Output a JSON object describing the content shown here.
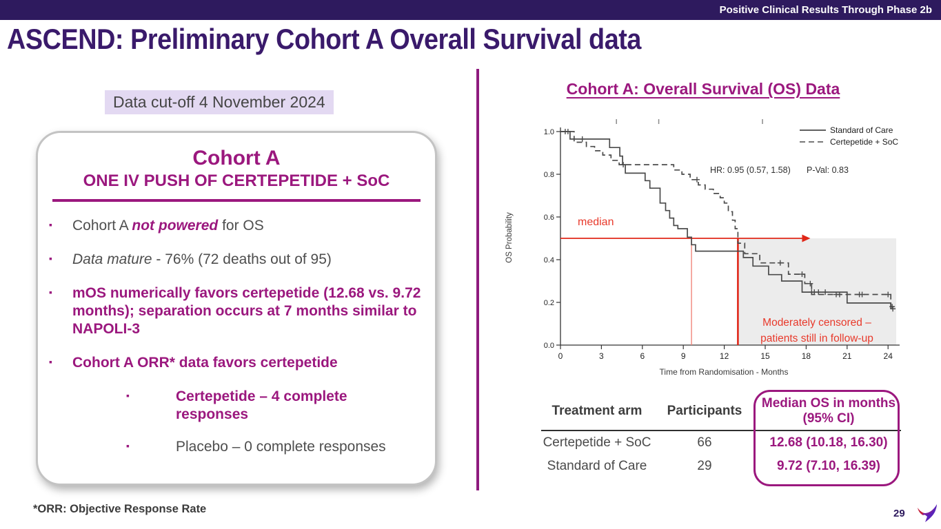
{
  "banner": {
    "text": "Positive Clinical Results Through Phase 2b"
  },
  "title": "ASCEND: Preliminary Cohort A Overall Survival data",
  "colors": {
    "banner_purple": "#2E1A5E",
    "title_purple": "#3A1A6B",
    "accent_magenta": "#9B187E",
    "divider_magenta": "#8E1A7E",
    "highlight_lavender": "#E3D9F2",
    "gray_text": "#4E4E4E",
    "red_annotation": "#E8392B",
    "curve_gray": "#4A4A4A"
  },
  "left_panel": {
    "cutoff": "Data cut-off 4 November 2024",
    "card": {
      "heading": "Cohort A",
      "subheading": "ONE IV PUSH OF CERTEPETIDE + SoC",
      "bullets": [
        {
          "level": 1,
          "segments": [
            {
              "t": "Cohort A ",
              "s": "g"
            },
            {
              "t": "not powered",
              "s": "mi"
            },
            {
              "t": " for OS",
              "s": "g"
            }
          ]
        },
        {
          "level": 1,
          "segments": [
            {
              "t": "Data mature",
              "s": "gi"
            },
            {
              "t": " - 76% (72 deaths out of 95)",
              "s": "g"
            }
          ]
        },
        {
          "level": 1,
          "segments": [
            {
              "t": "mOS numerically favors certepetide (12.68 vs. 9.72 months); separation occurs at 7 months similar to NAPOLI-3",
              "s": "m"
            }
          ]
        },
        {
          "level": 1,
          "segments": [
            {
              "t": "Cohort A ORR* data favors certepetide",
              "s": "m"
            }
          ]
        },
        {
          "level": 2,
          "segments": [
            {
              "t": "Certepetide – 4 complete responses",
              "s": "m"
            }
          ]
        },
        {
          "level": 2,
          "segments": [
            {
              "t": "Placebo – 0 complete responses",
              "s": "g"
            }
          ]
        }
      ]
    },
    "footnote": "*ORR: Objective Response Rate"
  },
  "right_panel": {
    "chart_title": "Cohort A: Overall Survival (OS) Data",
    "table": {
      "headers": [
        "Treatment arm",
        "Participants",
        [
          "Median OS in months",
          "(95% CI)"
        ]
      ],
      "rows": [
        [
          "Certepetide + SoC",
          "66",
          "12.68 (10.18, 16.30)"
        ],
        [
          "Standard of Care",
          "29",
          "9.72 (7.10, 16.39)"
        ]
      ]
    }
  },
  "footer": {
    "page_number": "29"
  },
  "chart_data": {
    "type": "line",
    "subtype": "kaplan-meier-step",
    "title": "Cohort A: Overall Survival (OS) Data",
    "xlabel": "Time from Randomisation - Months",
    "ylabel": "OS Probability",
    "xlim": [
      0,
      24.6
    ],
    "ylim": [
      0,
      1.0
    ],
    "xticks": [
      0,
      3,
      6,
      9,
      12,
      15,
      18,
      21,
      24
    ],
    "yticks": [
      0.0,
      0.2,
      0.4,
      0.6,
      0.8,
      1.0
    ],
    "grid": false,
    "legend_position": "top-right",
    "legend": [
      {
        "name": "Standard of Care",
        "style": "solid"
      },
      {
        "name": "Certepetide + SoC",
        "style": "dashed"
      }
    ],
    "annotations": {
      "hr": "HR: 0.95 (0.57, 1.58)",
      "pval": "P-Val:  0.83",
      "median_label": "median",
      "censor_note": [
        "Moderately censored –",
        "patients still in follow-up"
      ]
    },
    "medians_months": {
      "certepetide_soc": 12.68,
      "standard_of_care": 9.72
    },
    "median_line": {
      "y": 0.5,
      "arrow_end_t": 17.7,
      "v1_t": 9.6,
      "v2_t": 13.0
    },
    "shade": {
      "x_start": 13.0,
      "y_top": 0.5
    },
    "top_censor_ticks": [
      4.1,
      7.2,
      14.8
    ],
    "series": [
      {
        "name": "Standard of Care",
        "style": "solid",
        "steps": [
          [
            0,
            1.0
          ],
          [
            0.7,
            1.0
          ],
          [
            0.7,
            0.965
          ],
          [
            3.6,
            0.965
          ],
          [
            3.6,
            0.925
          ],
          [
            4.35,
            0.925
          ],
          [
            4.35,
            0.885
          ],
          [
            4.55,
            0.885
          ],
          [
            4.55,
            0.845
          ],
          [
            4.75,
            0.845
          ],
          [
            4.75,
            0.805
          ],
          [
            6.2,
            0.805
          ],
          [
            6.2,
            0.77
          ],
          [
            6.55,
            0.77
          ],
          [
            6.55,
            0.735
          ],
          [
            7.3,
            0.735
          ],
          [
            7.3,
            0.665
          ],
          [
            7.7,
            0.665
          ],
          [
            7.7,
            0.63
          ],
          [
            8.0,
            0.63
          ],
          [
            8.0,
            0.595
          ],
          [
            8.3,
            0.595
          ],
          [
            8.3,
            0.56
          ],
          [
            8.6,
            0.56
          ],
          [
            8.6,
            0.545
          ],
          [
            9.3,
            0.545
          ],
          [
            9.3,
            0.505
          ],
          [
            9.6,
            0.505
          ],
          [
            9.6,
            0.47
          ],
          [
            9.9,
            0.47
          ],
          [
            9.9,
            0.44
          ],
          [
            13.4,
            0.44
          ],
          [
            13.4,
            0.41
          ],
          [
            14.1,
            0.41
          ],
          [
            14.1,
            0.37
          ],
          [
            15.25,
            0.37
          ],
          [
            15.25,
            0.33
          ],
          [
            16.2,
            0.33
          ],
          [
            16.2,
            0.3
          ],
          [
            17.7,
            0.3
          ],
          [
            17.7,
            0.248
          ],
          [
            21.0,
            0.248
          ],
          [
            21.0,
            0.197
          ],
          [
            24.2,
            0.197
          ],
          [
            24.2,
            0.18
          ],
          [
            24.45,
            0.18
          ]
        ],
        "censors": [
          [
            0.35,
            1.0
          ],
          [
            0.55,
            1.0
          ],
          [
            1.6,
            0.965
          ],
          [
            18.4,
            0.248
          ],
          [
            18.6,
            0.248
          ],
          [
            18.9,
            0.248
          ],
          [
            19.4,
            0.248
          ],
          [
            24.3,
            0.18
          ]
        ]
      },
      {
        "name": "Certepetide + SoC",
        "style": "dashed",
        "steps": [
          [
            0,
            1.0
          ],
          [
            1.0,
            1.0
          ],
          [
            1.0,
            0.95
          ],
          [
            1.9,
            0.95
          ],
          [
            1.9,
            0.93
          ],
          [
            2.5,
            0.93
          ],
          [
            2.5,
            0.91
          ],
          [
            3.1,
            0.91
          ],
          [
            3.1,
            0.89
          ],
          [
            3.7,
            0.89
          ],
          [
            3.7,
            0.865
          ],
          [
            4.3,
            0.865
          ],
          [
            4.3,
            0.845
          ],
          [
            8.3,
            0.845
          ],
          [
            8.3,
            0.82
          ],
          [
            8.9,
            0.82
          ],
          [
            8.9,
            0.8
          ],
          [
            9.5,
            0.8
          ],
          [
            9.5,
            0.775
          ],
          [
            10.1,
            0.775
          ],
          [
            10.1,
            0.75
          ],
          [
            10.6,
            0.75
          ],
          [
            10.6,
            0.73
          ],
          [
            11.2,
            0.73
          ],
          [
            11.2,
            0.71
          ],
          [
            11.7,
            0.71
          ],
          [
            11.7,
            0.69
          ],
          [
            12.0,
            0.69
          ],
          [
            12.0,
            0.665
          ],
          [
            12.3,
            0.665
          ],
          [
            12.3,
            0.625
          ],
          [
            12.6,
            0.625
          ],
          [
            12.6,
            0.585
          ],
          [
            12.8,
            0.585
          ],
          [
            12.8,
            0.545
          ],
          [
            13.0,
            0.545
          ],
          [
            13.0,
            0.477
          ],
          [
            13.5,
            0.477
          ],
          [
            13.5,
            0.428
          ],
          [
            14.6,
            0.428
          ],
          [
            14.6,
            0.385
          ],
          [
            16.7,
            0.385
          ],
          [
            16.7,
            0.332
          ],
          [
            17.9,
            0.332
          ],
          [
            17.9,
            0.288
          ],
          [
            18.4,
            0.288
          ],
          [
            18.4,
            0.237
          ],
          [
            24.2,
            0.237
          ],
          [
            24.2,
            0.17
          ],
          [
            24.5,
            0.17
          ]
        ],
        "censors": [
          [
            4.6,
            0.845
          ],
          [
            10.0,
            0.775
          ],
          [
            16.1,
            0.385
          ],
          [
            17.7,
            0.332
          ],
          [
            18.3,
            0.288
          ],
          [
            20.2,
            0.237
          ],
          [
            20.45,
            0.237
          ],
          [
            21.9,
            0.237
          ],
          [
            22.1,
            0.237
          ],
          [
            24.0,
            0.237
          ],
          [
            24.35,
            0.17
          ]
        ]
      }
    ]
  }
}
